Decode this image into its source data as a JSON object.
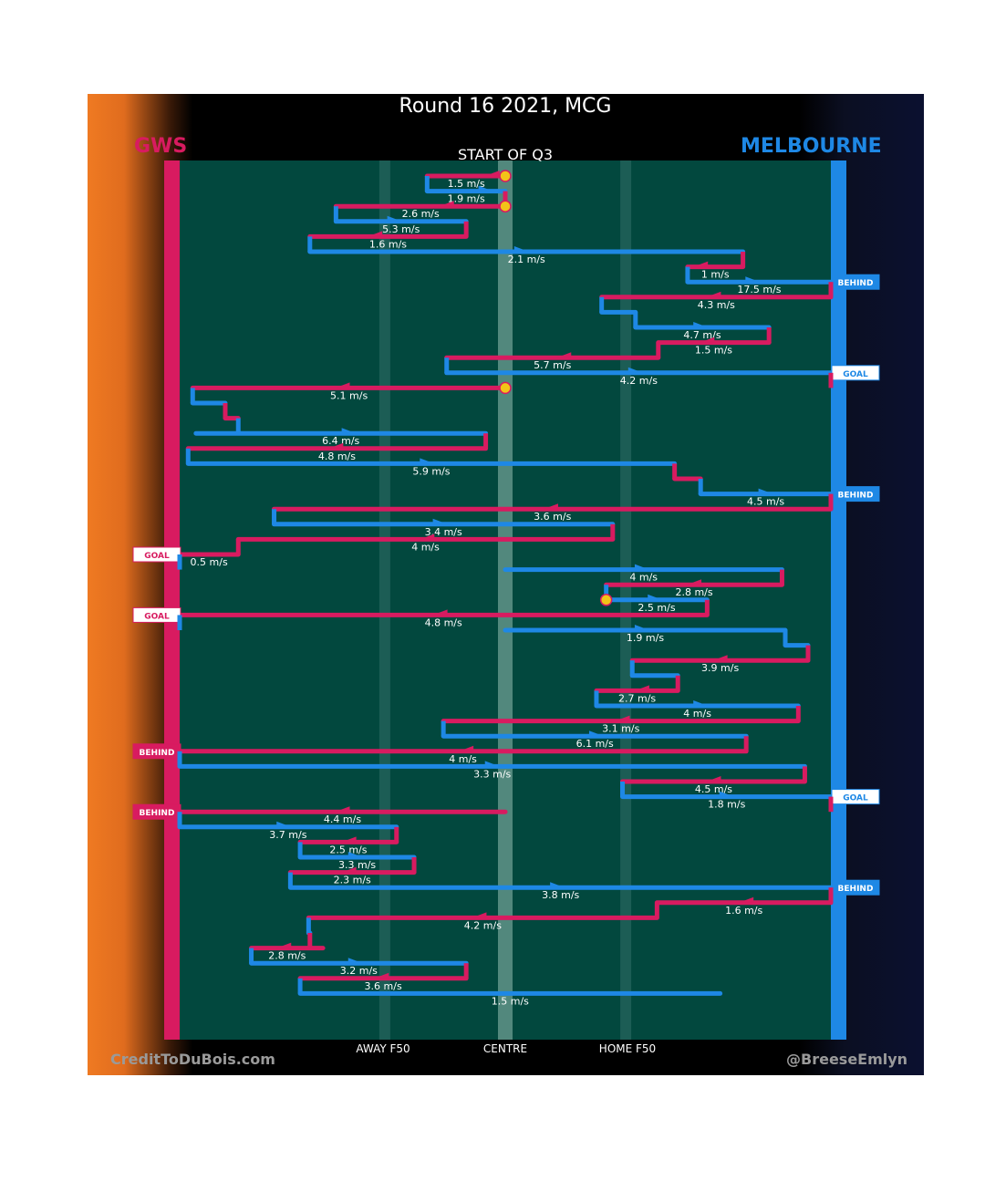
{
  "header": {
    "title": "Round 16 2021, MCG",
    "subtitle": "START OF Q3",
    "home_team": "GWS",
    "away_team": "MELBOURNE"
  },
  "footer": {
    "left_credit": "CreditToDuBois.com",
    "right_credit": "@BreeseEmlyn"
  },
  "colors": {
    "gws": "#d81b60",
    "melbourne": "#1e88e5",
    "field": "#02483e",
    "marker": "#f2c418"
  },
  "chart_data": {
    "type": "line",
    "title": "Round 16 2021, MCG",
    "subtitle": "START OF Q3",
    "x_axis_labels": [
      {
        "label": "AWAY F50",
        "pos": 0.315
      },
      {
        "label": "CENTRE",
        "pos": 0.5
      },
      {
        "label": "HOME F50",
        "pos": 0.685
      }
    ],
    "chains": [
      {
        "team": "gws",
        "from": 0.5,
        "via": 0.38,
        "to": 0.38,
        "speed": "1.5 m/s",
        "arrow": 0.48,
        "dir": -1,
        "outcome": ""
      },
      {
        "team": "melbourne",
        "from": 0.38,
        "via": 0.5,
        "to": 0.5,
        "speed": "1.9 m/s",
        "arrow": 0.47,
        "dir": 1,
        "outcome": ""
      },
      {
        "team": "gws",
        "from": 0.5,
        "to": 0.24,
        "speed": "2.6 m/s",
        "arrow": 0.41,
        "dir": -1,
        "outcome": ""
      },
      {
        "team": "melbourne",
        "from": 0.24,
        "to": 0.44,
        "speed": "5.3 m/s",
        "arrow": 0.33,
        "dir": 1,
        "outcome": ""
      },
      {
        "team": "gws",
        "from": 0.44,
        "to": 0.2,
        "speed": "1.6 m/s",
        "arrow": 0.3,
        "dir": -1,
        "outcome": ""
      },
      {
        "team": "melbourne",
        "from": 0.2,
        "to": 0.865,
        "speed": "2.1 m/s",
        "arrow": 0.525,
        "dir": 1,
        "outcome": ""
      },
      {
        "team": "gws",
        "from": 0.865,
        "to": 0.78,
        "speed": "1 m/s",
        "arrow": 0.8,
        "dir": -1,
        "outcome": ""
      },
      {
        "team": "melbourne",
        "from": 0.78,
        "to": 1.0,
        "speed": "17.5 m/s",
        "arrow": 0.88,
        "dir": 1,
        "outcome": "BEHIND"
      },
      {
        "team": "gws",
        "from": 1.0,
        "to": 0.648,
        "speed": "4.3 m/s",
        "arrow": 0.82,
        "dir": -1,
        "outcome": ""
      },
      {
        "team": "melbourne",
        "from": 0.648,
        "to": 0.7,
        "speed": "",
        "arrow": 0,
        "dir": 1,
        "outcome": ""
      },
      {
        "team": "melbourne",
        "from": 0.7,
        "to": 0.905,
        "speed": "4.7 m/s",
        "arrow": 0.8,
        "dir": 1,
        "outcome": ""
      },
      {
        "team": "gws",
        "from": 0.905,
        "to": 0.735,
        "speed": "1.5 m/s",
        "arrow": 0.81,
        "dir": -1,
        "outcome": ""
      },
      {
        "team": "gws",
        "from": 0.735,
        "to": 0.41,
        "speed": "5.7 m/s",
        "arrow": 0.59,
        "dir": -1,
        "outcome": ""
      },
      {
        "team": "melbourne",
        "from": 0.41,
        "to": 1.0,
        "speed": "4.2 m/s",
        "arrow": 0.7,
        "dir": 1,
        "outcome": "GOAL"
      },
      {
        "team": "gws",
        "from": 0.5,
        "to": 0.02,
        "speed": "5.1 m/s",
        "arrow": 0.25,
        "dir": -1,
        "outcome": ""
      },
      {
        "team": "melbourne",
        "from": 0.02,
        "via": 0.07,
        "to": 0.07,
        "speed": "",
        "arrow": 0,
        "dir": 1,
        "outcome": ""
      },
      {
        "team": "gws",
        "from": 0.07,
        "via": 0.09,
        "to": 0.09,
        "speed": "",
        "arrow": 0,
        "dir": -1,
        "outcome": ""
      },
      {
        "team": "melbourne",
        "from": 0.025,
        "to": 0.47,
        "speed": "6.4 m/s",
        "arrow": 0.26,
        "dir": 1,
        "outcome": ""
      },
      {
        "team": "gws",
        "from": 0.47,
        "to": 0.013,
        "speed": "4.8 m/s",
        "arrow": 0.24,
        "dir": -1,
        "outcome": ""
      },
      {
        "team": "melbourne",
        "from": 0.013,
        "to": 0.76,
        "speed": "5.9 m/s",
        "arrow": 0.38,
        "dir": 1,
        "outcome": ""
      },
      {
        "team": "gws",
        "from": 0.76,
        "to": 0.8,
        "speed": "",
        "arrow": 0,
        "dir": -1,
        "outcome": ""
      },
      {
        "team": "melbourne",
        "from": 0.8,
        "to": 1.0,
        "speed": "4.5 m/s",
        "arrow": 0.9,
        "dir": 1,
        "outcome": "BEHIND"
      },
      {
        "team": "gws",
        "from": 1.0,
        "to": 0.145,
        "speed": "3.6 m/s",
        "arrow": 0.57,
        "dir": -1,
        "outcome": ""
      },
      {
        "team": "melbourne",
        "from": 0.145,
        "to": 0.665,
        "speed": "3.4 m/s",
        "arrow": 0.4,
        "dir": 1,
        "outcome": ""
      },
      {
        "team": "gws",
        "from": 0.665,
        "to": 0.09,
        "speed": "4 m/s",
        "arrow": 0.38,
        "dir": -1,
        "outcome": ""
      },
      {
        "team": "gws",
        "from": 0.09,
        "to": 0.0,
        "speed": "0.5 m/s",
        "arrow": 0,
        "dir": -1,
        "outcome": "GOAL"
      },
      {
        "team": "melbourne",
        "from": 0.5,
        "to": 0.925,
        "speed": "4 m/s",
        "arrow": 0.71,
        "dir": 1,
        "outcome": ""
      },
      {
        "team": "gws",
        "from": 0.925,
        "to": 0.655,
        "speed": "2.8 m/s",
        "arrow": 0.79,
        "dir": -1,
        "outcome": ""
      },
      {
        "team": "melbourne",
        "from": 0.655,
        "to": 0.81,
        "speed": "2.5 m/s",
        "arrow": 0.73,
        "dir": 1,
        "outcome": ""
      },
      {
        "team": "gws",
        "from": 0.81,
        "to": 0.0,
        "speed": "4.8 m/s",
        "arrow": 0.4,
        "dir": -1,
        "outcome": "GOAL"
      },
      {
        "team": "melbourne",
        "from": 0.5,
        "to": 0.93,
        "speed": "1.9 m/s",
        "arrow": 0.71,
        "dir": 1,
        "outcome": ""
      },
      {
        "team": "melbourne",
        "from": 0.93,
        "via": 0.965,
        "to": 0.965,
        "speed": "",
        "arrow": 0,
        "dir": 1,
        "outcome": ""
      },
      {
        "team": "gws",
        "from": 0.965,
        "to": 0.695,
        "speed": "3.9 m/s",
        "arrow": 0.83,
        "dir": -1,
        "outcome": ""
      },
      {
        "team": "melbourne",
        "from": 0.695,
        "via": 0.765,
        "to": 0.765,
        "speed": "",
        "arrow": 0,
        "dir": 1,
        "outcome": ""
      },
      {
        "team": "gws",
        "from": 0.765,
        "to": 0.64,
        "speed": "2.7 m/s",
        "arrow": 0.71,
        "dir": -1,
        "outcome": ""
      },
      {
        "team": "melbourne",
        "from": 0.64,
        "to": 0.95,
        "speed": "4 m/s",
        "arrow": 0.8,
        "dir": 1,
        "outcome": ""
      },
      {
        "team": "gws",
        "from": 0.95,
        "to": 0.405,
        "speed": "3.1 m/s",
        "arrow": 0.68,
        "dir": -1,
        "outcome": ""
      },
      {
        "team": "melbourne",
        "from": 0.405,
        "to": 0.87,
        "speed": "6.1 m/s",
        "arrow": 0.64,
        "dir": 1,
        "outcome": ""
      },
      {
        "team": "gws",
        "from": 0.87,
        "to": 0.0,
        "speed": "4 m/s",
        "arrow": 0.44,
        "dir": -1,
        "outcome": "BEHIND"
      },
      {
        "team": "melbourne",
        "from": 0.0,
        "to": 0.96,
        "speed": "3.3 m/s",
        "arrow": 0.48,
        "dir": 1,
        "outcome": ""
      },
      {
        "team": "gws",
        "from": 0.96,
        "to": 0.68,
        "speed": "4.5 m/s",
        "arrow": 0.82,
        "dir": -1,
        "outcome": ""
      },
      {
        "team": "melbourne",
        "from": 0.68,
        "to": 1.0,
        "speed": "1.8 m/s",
        "arrow": 0.84,
        "dir": 1,
        "outcome": "GOAL"
      },
      {
        "team": "gws",
        "from": 0.5,
        "to": 0.0,
        "speed": "4.4 m/s",
        "arrow": 0.25,
        "dir": -1,
        "outcome": "BEHIND"
      },
      {
        "team": "melbourne",
        "from": 0.0,
        "to": 0.333,
        "speed": "3.7 m/s",
        "arrow": 0.16,
        "dir": 1,
        "outcome": ""
      },
      {
        "team": "gws",
        "from": 0.333,
        "to": 0.185,
        "speed": "2.5 m/s",
        "arrow": 0.26,
        "dir": -1,
        "outcome": ""
      },
      {
        "team": "melbourne",
        "from": 0.185,
        "to": 0.36,
        "speed": "3.3 m/s",
        "arrow": 0.27,
        "dir": 1,
        "outcome": ""
      },
      {
        "team": "gws",
        "from": 0.36,
        "to": 0.17,
        "speed": "2.3 m/s",
        "arrow": 0.26,
        "dir": -1,
        "outcome": ""
      },
      {
        "team": "melbourne",
        "from": 0.17,
        "to": 1.0,
        "speed": "3.8 m/s",
        "arrow": 0.58,
        "dir": 1,
        "outcome": "BEHIND"
      },
      {
        "team": "gws",
        "from": 1.0,
        "to": 0.733,
        "speed": "1.6 m/s",
        "arrow": 0.87,
        "dir": -1,
        "outcome": ""
      },
      {
        "team": "gws",
        "from": 0.733,
        "to": 0.198,
        "speed": "4.2 m/s",
        "arrow": 0.46,
        "dir": -1,
        "outcome": ""
      },
      {
        "team": "melbourne",
        "from": 0.198,
        "via": 0.2,
        "to": 0.2,
        "speed": "",
        "arrow": 0,
        "dir": 1,
        "outcome": ""
      },
      {
        "team": "gws",
        "from": 0.22,
        "to": 0.11,
        "speed": "2.8 m/s",
        "arrow": 0.16,
        "dir": -1,
        "outcome": ""
      },
      {
        "team": "melbourne",
        "from": 0.11,
        "to": 0.44,
        "speed": "3.2 m/s",
        "arrow": 0.27,
        "dir": 1,
        "outcome": ""
      },
      {
        "team": "gws",
        "from": 0.44,
        "to": 0.185,
        "speed": "3.6 m/s",
        "arrow": 0.31,
        "dir": -1,
        "outcome": ""
      },
      {
        "team": "melbourne",
        "from": 0.185,
        "to": 0.83,
        "speed": "1.5 m/s",
        "arrow": 0,
        "dir": 1,
        "outcome": ""
      }
    ]
  }
}
